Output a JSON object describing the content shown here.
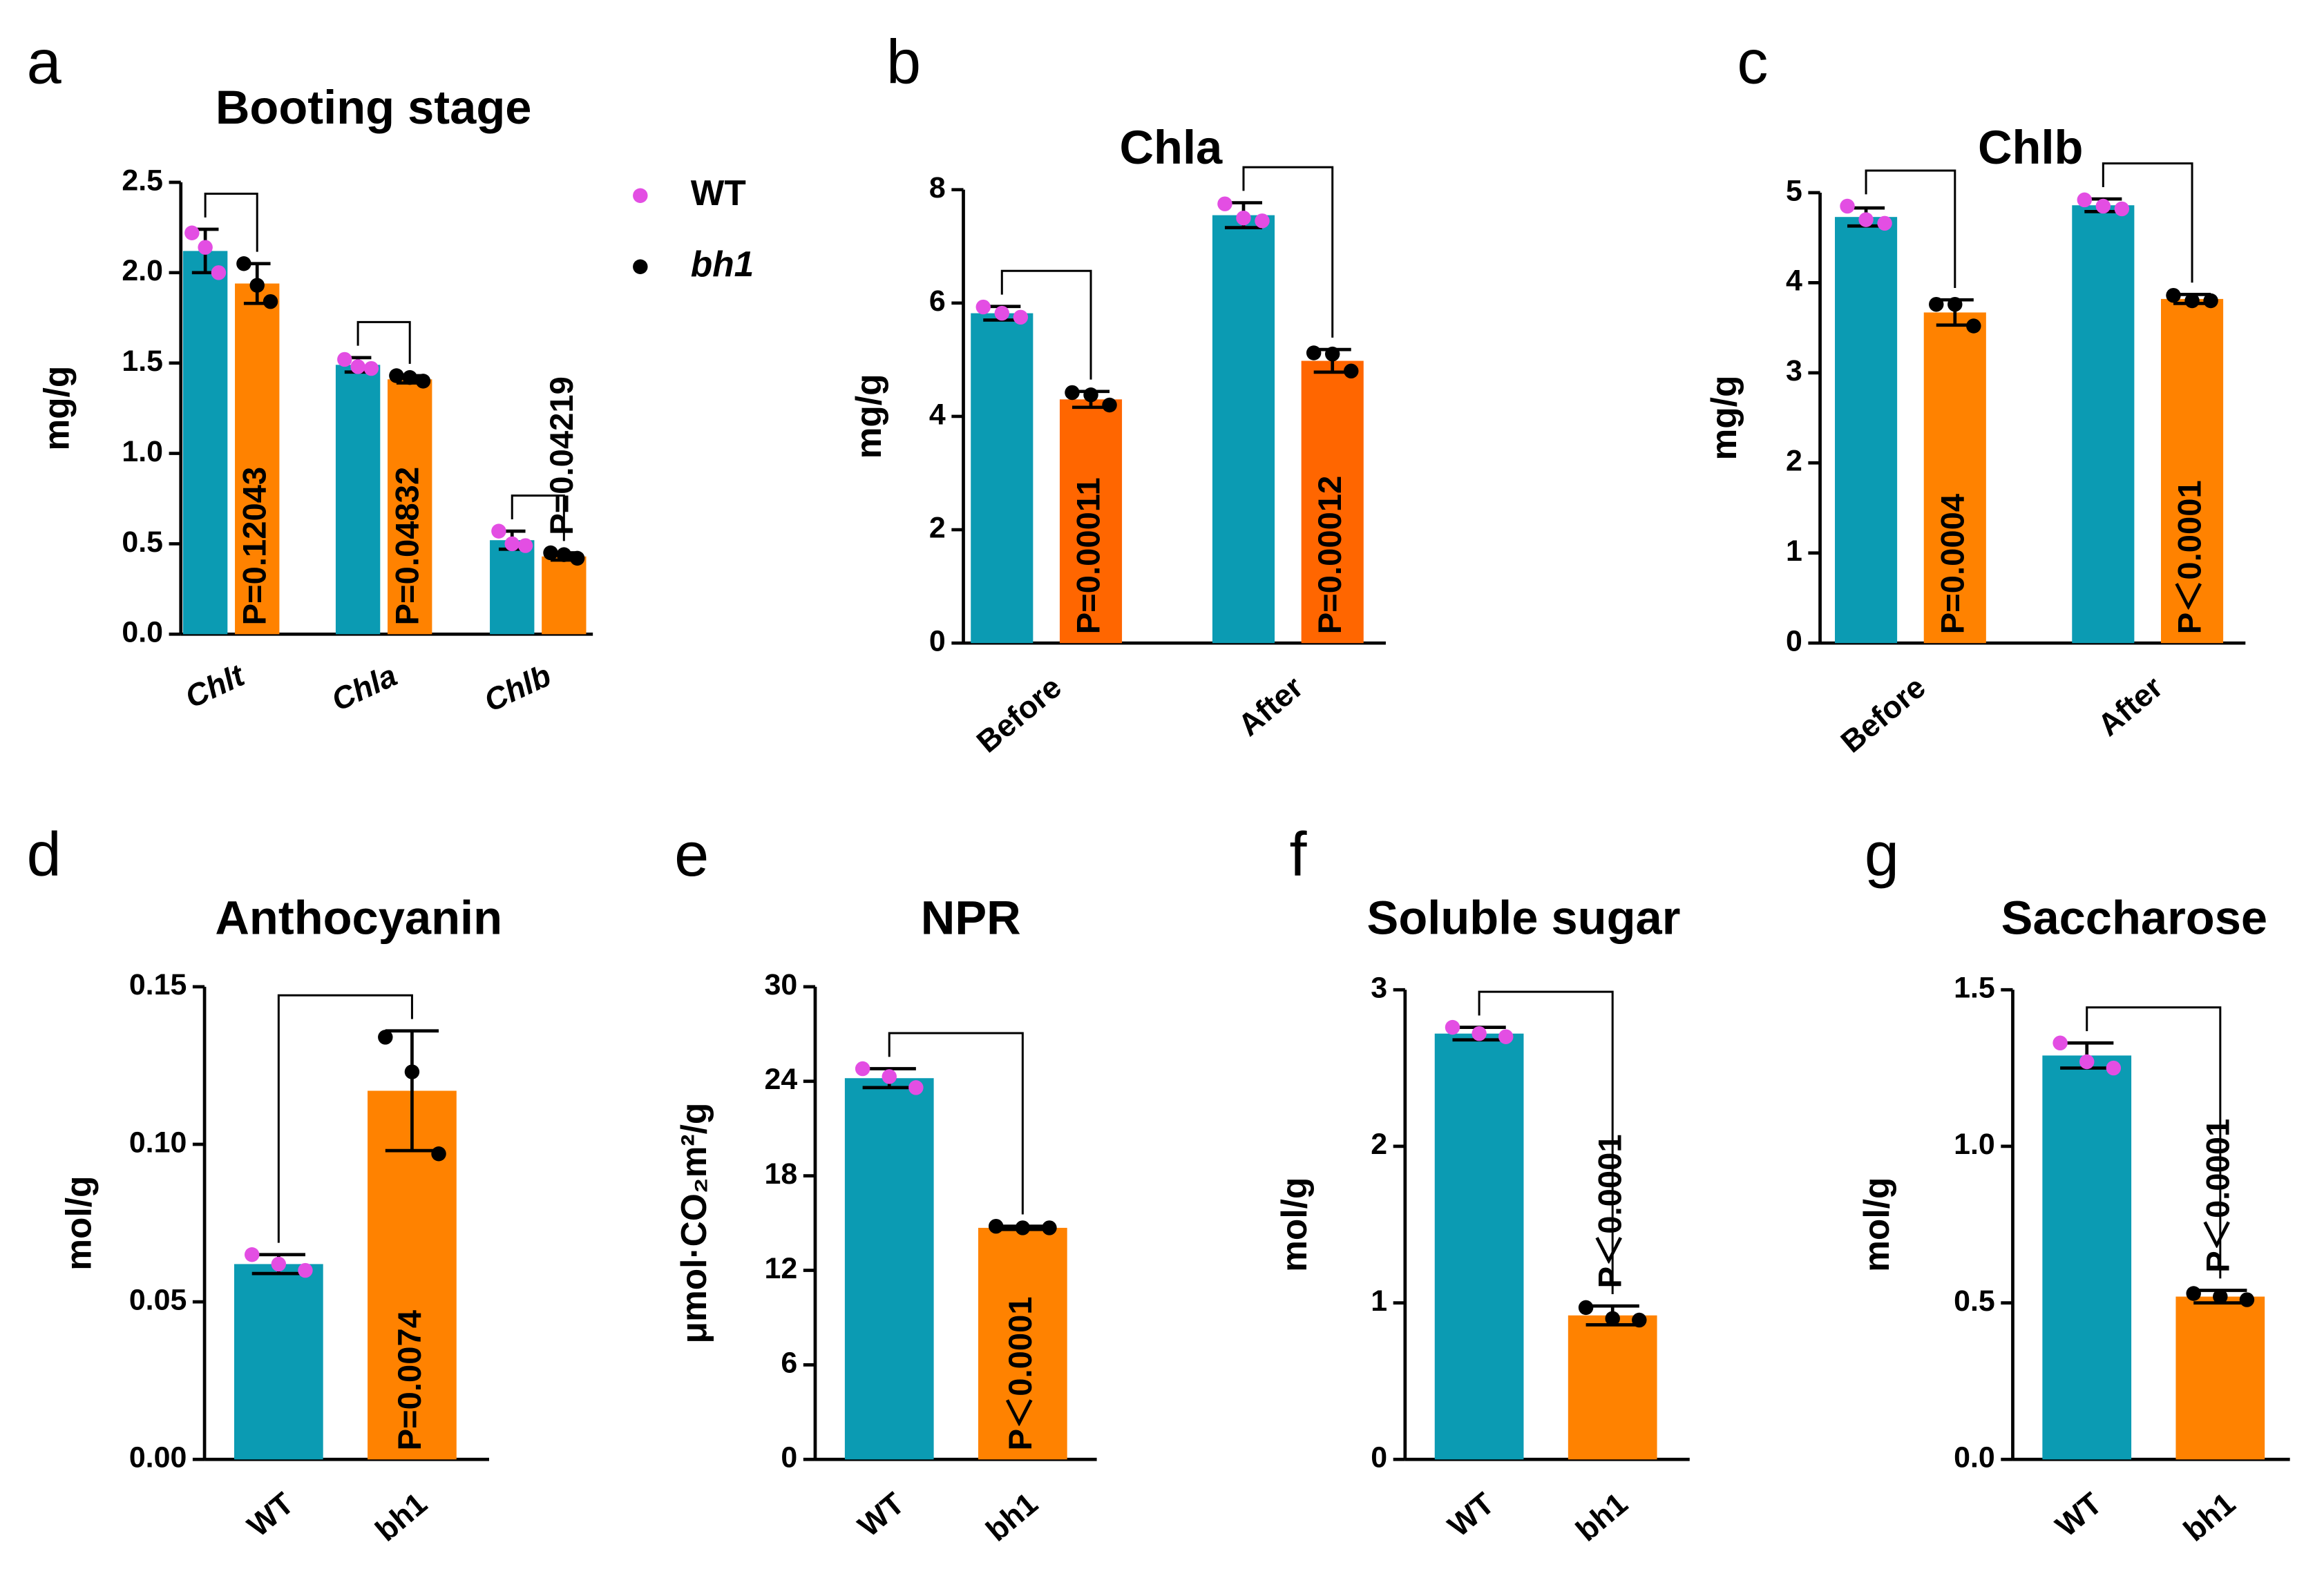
{
  "chart_data": [
    {
      "type": "bar",
      "letter": "a",
      "title": "Booting stage",
      "ylabel": "mg/g",
      "category_style": "italic",
      "categories": [
        "Chlt",
        "Chla",
        "Chlb"
      ],
      "series": [
        {
          "name": "WT",
          "color": "#0b9bb3",
          "point_color": "#e34ee3",
          "values": [
            2.12,
            1.49,
            0.52
          ],
          "errors": [
            0.12,
            0.04,
            0.05
          ],
          "points": [
            [
              2.22,
              2.14,
              2.0
            ],
            [
              1.52,
              1.48,
              1.47
            ],
            [
              0.57,
              0.5,
              0.49
            ]
          ]
        },
        {
          "name": "bh1",
          "color": "#ff8200",
          "point_color": "#000000",
          "values": [
            1.94,
            1.41,
            0.43
          ],
          "errors": [
            0.11,
            0.02,
            0.02
          ],
          "points": [
            [
              2.05,
              1.93,
              1.84
            ],
            [
              1.43,
              1.42,
              1.4
            ],
            [
              0.45,
              0.44,
              0.42
            ]
          ]
        }
      ],
      "p_values": [
        "P=0.12043",
        "P=0.04832",
        "P=0.04219"
      ],
      "ylim": [
        0,
        2.5
      ],
      "yticks": [
        {
          "value": 0,
          "label": "0.0"
        },
        0.5,
        {
          "value": 1,
          "label": "1.0"
        },
        1.5,
        {
          "value": 2,
          "label": "2.0"
        },
        2.5
      ],
      "legend": true
    },
    {
      "type": "bar",
      "letter": "b",
      "title": "Chla",
      "ylabel": "mg/g",
      "categories": [
        "Before",
        "After"
      ],
      "series": [
        {
          "name": "WT",
          "color": "#0b9bb3",
          "point_color": "#e34ee3",
          "values": [
            5.82,
            7.55
          ],
          "errors": [
            0.12,
            0.22
          ],
          "points": [
            [
              5.93,
              5.82,
              5.75
            ],
            [
              7.75,
              7.5,
              7.45
            ]
          ]
        },
        {
          "name": "bh1",
          "color": "#ff6600",
          "point_color": "#000000",
          "values": [
            4.3,
            4.98
          ],
          "errors": [
            0.14,
            0.2
          ],
          "points": [
            [
              4.42,
              4.38,
              4.2
            ],
            [
              5.12,
              5.1,
              4.8
            ]
          ]
        }
      ],
      "p_values": [
        "P=0.00011",
        "P=0.00012"
      ],
      "ylim": [
        0,
        8
      ],
      "yticks": [
        0,
        2,
        4,
        6,
        8
      ]
    },
    {
      "type": "bar",
      "letter": "c",
      "title": "Chlb",
      "ylabel": "mg/g",
      "categories": [
        "Before",
        "After"
      ],
      "series": [
        {
          "name": "WT",
          "color": "#0b9bb3",
          "point_color": "#e34ee3",
          "values": [
            4.73,
            4.86
          ],
          "errors": [
            0.1,
            0.07
          ],
          "points": [
            [
              4.85,
              4.7,
              4.66
            ],
            [
              4.92,
              4.85,
              4.82
            ]
          ]
        },
        {
          "name": "bh1",
          "color": "#ff8200",
          "point_color": "#000000",
          "values": [
            3.67,
            3.82
          ],
          "errors": [
            0.14,
            0.05
          ],
          "points": [
            [
              3.76,
              3.76,
              3.52
            ],
            [
              3.86,
              3.8,
              3.8
            ]
          ]
        }
      ],
      "p_values": [
        "P=0.0004",
        "P＜0.0001"
      ],
      "ylim": [
        0,
        5
      ],
      "yticks": [
        0,
        1,
        2,
        3,
        4,
        5
      ]
    },
    {
      "type": "bar",
      "letter": "d",
      "title": "Anthocyanin",
      "ylabel": "mol/g",
      "categories": [
        "WT",
        "bh1"
      ],
      "colors": [
        "#0b9bb3",
        "#ff8200"
      ],
      "point_colors": [
        "#e34ee3",
        "#000000"
      ],
      "values": [
        0.062,
        0.117
      ],
      "errors": [
        0.003,
        0.019
      ],
      "points": [
        [
          0.065,
          0.062,
          0.06
        ],
        [
          0.134,
          0.123,
          0.097
        ]
      ],
      "p_value": "P=0.0074",
      "ylim": [
        0,
        0.15
      ],
      "yticks": [
        {
          "value": 0,
          "label": "0.00"
        },
        0.05,
        {
          "value": 0.1,
          "label": "0.10"
        },
        0.15
      ]
    },
    {
      "type": "bar",
      "letter": "e",
      "title": "NPR",
      "ylabel": "μmol·CO₂m²/g",
      "categories": [
        "WT",
        "bh1"
      ],
      "colors": [
        "#0b9bb3",
        "#ff8200"
      ],
      "point_colors": [
        "#e34ee3",
        "#000000"
      ],
      "values": [
        24.2,
        14.7
      ],
      "errors": [
        0.6,
        0.1
      ],
      "points": [
        [
          24.8,
          24.3,
          23.6
        ],
        [
          14.8,
          14.7,
          14.7
        ]
      ],
      "p_value": "P＜0.0001",
      "ylim": [
        0,
        30
      ],
      "yticks": [
        0,
        6,
        12,
        18,
        24,
        30
      ]
    },
    {
      "type": "bar",
      "letter": "f",
      "title": "Soluble sugar",
      "ylabel": "mol/g",
      "categories": [
        "WT",
        "bh1"
      ],
      "colors": [
        "#0b9bb3",
        "#ff8200"
      ],
      "point_colors": [
        "#e34ee3",
        "#000000"
      ],
      "values": [
        2.72,
        0.92
      ],
      "errors": [
        0.04,
        0.06
      ],
      "points": [
        [
          2.76,
          2.72,
          2.7
        ],
        [
          0.97,
          0.9,
          0.89
        ]
      ],
      "p_value": "P＜0.0001",
      "ylim": [
        0,
        3
      ],
      "yticks": [
        0,
        1,
        2,
        3
      ]
    },
    {
      "type": "bar",
      "letter": "g",
      "title": "Saccharose",
      "ylabel": "mol/g",
      "categories": [
        "WT",
        "bh1"
      ],
      "colors": [
        "#0b9bb3",
        "#ff8200"
      ],
      "point_colors": [
        "#e34ee3",
        "#000000"
      ],
      "values": [
        1.29,
        0.52
      ],
      "errors": [
        0.04,
        0.02
      ],
      "points": [
        [
          1.33,
          1.27,
          1.25
        ],
        [
          0.53,
          0.52,
          0.51
        ]
      ],
      "p_value": "P＜0.0001",
      "ylim": [
        0,
        1.5
      ],
      "yticks": [
        {
          "value": 0,
          "label": "0.0"
        },
        0.5,
        {
          "value": 1,
          "label": "1.0"
        },
        1.5
      ]
    }
  ]
}
